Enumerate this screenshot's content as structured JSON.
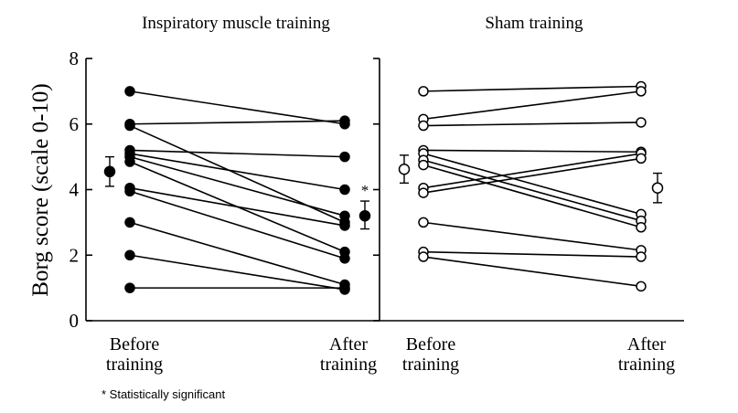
{
  "chart_data": {
    "type": "line",
    "ylabel": "Borg score (scale 0-10)",
    "ylim": [
      0,
      8
    ],
    "yticks": [
      "0",
      "2",
      "4",
      "6",
      "8"
    ],
    "footnote": "* Statistically significant",
    "panels": [
      {
        "title": "Inspiratory muscle training",
        "marker": "filled-circle",
        "categories": [
          {
            "line1": "Before",
            "line2": "training"
          },
          {
            "line1": "After",
            "line2": "training"
          }
        ],
        "pairs": [
          [
            7.0,
            6.0
          ],
          [
            6.0,
            6.1
          ],
          [
            5.95,
            3.0
          ],
          [
            5.2,
            5.0
          ],
          [
            5.1,
            4.0
          ],
          [
            5.0,
            3.2
          ],
          [
            4.85,
            2.1
          ],
          [
            4.05,
            2.9
          ],
          [
            3.95,
            1.9
          ],
          [
            3.0,
            1.1
          ],
          [
            2.0,
            0.95
          ],
          [
            1.0,
            1.0
          ]
        ],
        "summary": {
          "mean": 3.2,
          "low": 2.8,
          "high": 3.65,
          "annotation": "*"
        },
        "before_summary": {
          "mean": 4.55,
          "low": 4.1,
          "high": 5.0
        }
      },
      {
        "title": "Sham training",
        "marker": "open-circle",
        "categories": [
          {
            "line1": "Before",
            "line2": "training"
          },
          {
            "line1": "After",
            "line2": "training"
          }
        ],
        "pairs": [
          [
            7.0,
            7.15
          ],
          [
            6.15,
            7.0
          ],
          [
            5.95,
            6.05
          ],
          [
            5.2,
            5.15
          ],
          [
            5.1,
            3.25
          ],
          [
            4.9,
            3.05
          ],
          [
            4.75,
            2.85
          ],
          [
            4.05,
            5.1
          ],
          [
            3.9,
            4.95
          ],
          [
            3.0,
            2.15
          ],
          [
            2.1,
            1.95
          ],
          [
            1.95,
            1.05
          ]
        ],
        "summary": {
          "mean": 4.05,
          "low": 3.6,
          "high": 4.5,
          "annotation": ""
        },
        "before_summary": {
          "mean": 4.62,
          "low": 4.2,
          "high": 5.05
        }
      }
    ]
  }
}
